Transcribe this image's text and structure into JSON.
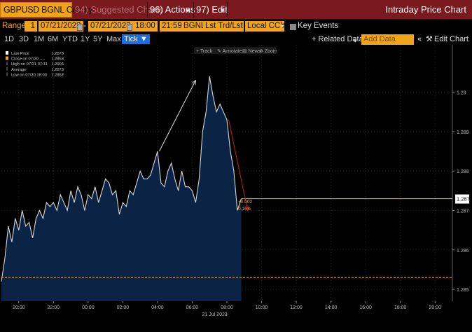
{
  "toolbar": {
    "ticker": "GBPUSD BGNL Curncy",
    "suggested": "94) Suggested Charts",
    "actions": "96) Actions",
    "edit": "97) Edit",
    "title": "Intraday Price Chart"
  },
  "range_bar": {
    "range_label": "Range",
    "range_value": "1",
    "start_date": "07/21/2023",
    "dash": "-",
    "end_date": "07/21/2023",
    "start_time": "18:00",
    "end_time": "21:59",
    "source": "BGNL",
    "price_type": "Lst Trd/Lst F",
    "currency": "Local CCY",
    "key_events": "Key Events"
  },
  "period_bar": {
    "periods": [
      "1D",
      "3D",
      "1M",
      "6M",
      "YTD",
      "1Y",
      "5Y",
      "Max"
    ],
    "active": "Tick",
    "related_data": "+ Related Data",
    "add_data_placeholder": "Add Data",
    "edit_chart": "Edit Chart"
  },
  "chart_tools": [
    "Track",
    "Annotate",
    "News",
    "Zoom"
  ],
  "legend": [
    {
      "label": "Last Price",
      "value": "1.2873",
      "swatch": "#ffffff"
    },
    {
      "label": "Close on 07/20 ----",
      "value": "1.2853",
      "swatch": "#f0a41a"
    },
    {
      "label": "High on 07/21 07:11",
      "value": "1.2904",
      "swatch": "none"
    },
    {
      "label": "Average",
      "value": "1.2873",
      "swatch": "none"
    },
    {
      "label": "Low on 07/20 18:00",
      "value": "1.2852",
      "swatch": "none"
    }
  ],
  "last_label": {
    "change": "+0.002",
    "pct": "0.16%",
    "value": "1.2873"
  },
  "colors": {
    "accent": "#f0a41a",
    "header": "#7a1a1e",
    "fill": "#0b2345",
    "line": "#d8d8d8",
    "active_tab": "#1e6dd8"
  },
  "chart_data": {
    "type": "area",
    "x_labels": [
      "20:00",
      "22:00",
      "00:00",
      "02:00",
      "04:00",
      "06:00",
      "08:00",
      "10:00",
      "12:00",
      "14:00",
      "16:00",
      "18:00",
      "20:00"
    ],
    "date_label": "21 Jul 2023",
    "y_ticks": [
      1.285,
      1.286,
      1.287,
      1.288,
      1.289,
      1.29
    ],
    "ylim": [
      1.2847,
      1.2912
    ],
    "x_range_hours": [
      -5.0,
      21.0
    ],
    "data_end_hour": 8.83,
    "close_ref": 1.2853,
    "last_value": 1.2873,
    "series": [
      {
        "name": "Last Price",
        "x": [
          -5.0,
          -4.8,
          -4.6,
          -4.4,
          -4.2,
          -4.0,
          -3.8,
          -3.6,
          -3.4,
          -3.2,
          -3.0,
          -2.8,
          -2.6,
          -2.4,
          -2.2,
          -2.0,
          -1.8,
          -1.6,
          -1.4,
          -1.2,
          -1.0,
          -0.8,
          -0.6,
          -0.4,
          -0.2,
          0.0,
          0.2,
          0.4,
          0.6,
          0.8,
          1.0,
          1.2,
          1.4,
          1.6,
          1.8,
          2.0,
          2.2,
          2.4,
          2.6,
          2.8,
          3.0,
          3.2,
          3.4,
          3.6,
          3.8,
          4.0,
          4.2,
          4.4,
          4.6,
          4.8,
          5.0,
          5.2,
          5.4,
          5.6,
          5.8,
          6.0,
          6.2,
          6.4,
          6.6,
          6.8,
          7.0,
          7.2,
          7.4,
          7.6,
          7.8,
          8.0,
          8.2,
          8.4,
          8.6,
          8.83
        ],
        "y": [
          1.2852,
          1.2858,
          1.2866,
          1.2862,
          1.2868,
          1.2865,
          1.287,
          1.2866,
          1.2867,
          1.2863,
          1.2868,
          1.287,
          1.2868,
          1.2872,
          1.2871,
          1.2872,
          1.287,
          1.2874,
          1.2872,
          1.287,
          1.2875,
          1.2872,
          1.2876,
          1.2874,
          1.287,
          1.2874,
          1.2873,
          1.2876,
          1.2872,
          1.2875,
          1.2878,
          1.2877,
          1.2874,
          1.2875,
          1.2869,
          1.2872,
          1.2871,
          1.2875,
          1.2874,
          1.2877,
          1.288,
          1.2878,
          1.2878,
          1.2879,
          1.2882,
          1.2885,
          1.2877,
          1.2876,
          1.288,
          1.2882,
          1.2878,
          1.2875,
          1.288,
          1.2876,
          1.2876,
          1.2875,
          1.2872,
          1.2878,
          1.289,
          1.2895,
          1.2904,
          1.2899,
          1.2895,
          1.2897,
          1.2895,
          1.2893,
          1.2885,
          1.288,
          1.287,
          1.2873
        ]
      }
    ],
    "annotations": [
      {
        "type": "arrow",
        "color": "#dddddd",
        "from": [
          4.1,
          1.2885
        ],
        "to": [
          6.2,
          1.2903
        ]
      },
      {
        "type": "arrow",
        "color": "#c81e1e",
        "from": [
          8.1,
          1.2893
        ],
        "to": [
          9.2,
          1.287
        ]
      }
    ]
  }
}
